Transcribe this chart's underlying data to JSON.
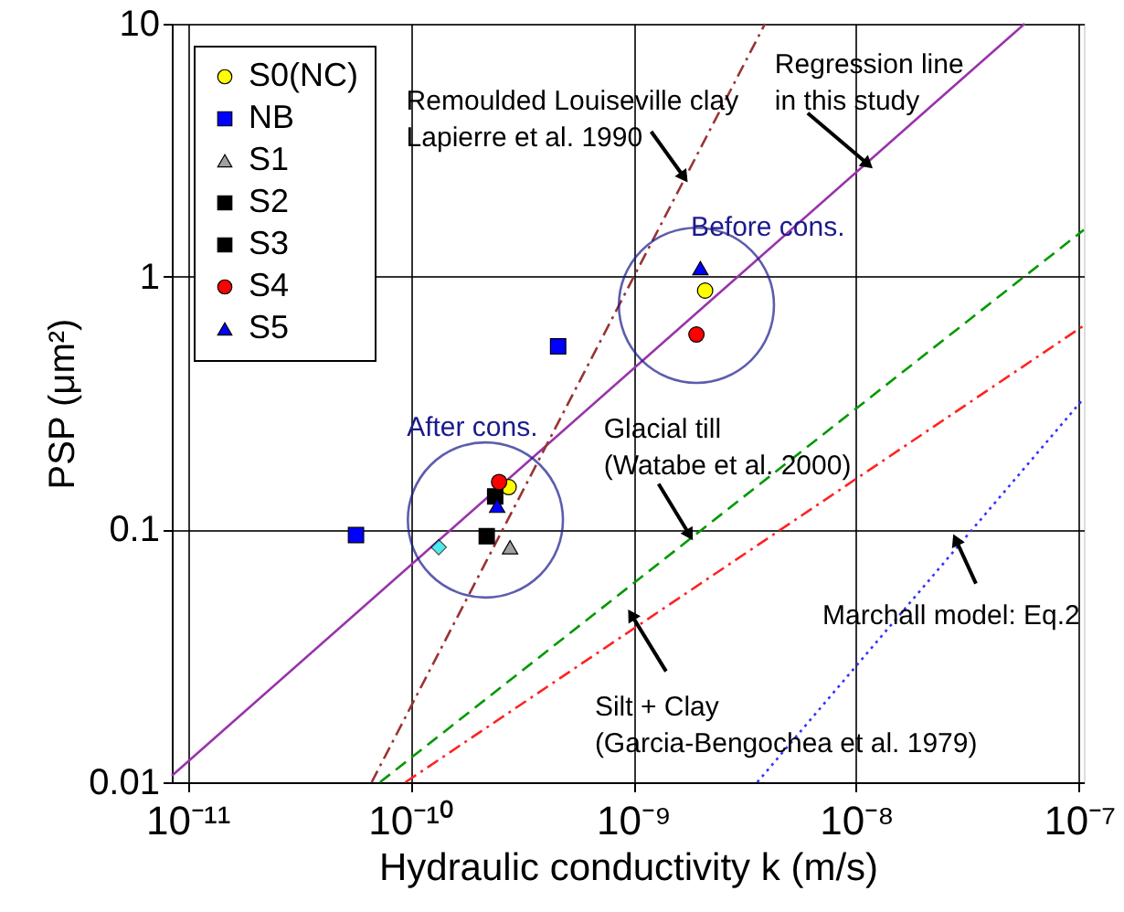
{
  "chart_data": {
    "type": "scatter",
    "xlabel": "Hydraulic conductivity  k (m/s)",
    "ylabel": "PSP (μm²)",
    "log": "xy",
    "grid": true,
    "legend": "top left",
    "xlim": [
      8.5e-12,
      1.05e-07
    ],
    "ylim": [
      0.01,
      10
    ],
    "xticks": [
      {
        "value": 1e-11,
        "label": "10⁻¹¹"
      },
      {
        "value": 1e-10,
        "label": "10⁻¹⁰"
      },
      {
        "value": 1e-09,
        "label": "10⁻⁹"
      },
      {
        "value": 1e-08,
        "label": "10⁻⁸"
      },
      {
        "value": 1e-07,
        "label": "10⁻⁷"
      }
    ],
    "yticks": [
      0.01,
      0.1,
      1,
      10
    ],
    "series": [
      {
        "name": "S0(NC)",
        "color": "#ffff00",
        "marker": "circle",
        "x": [
          2.76e-10,
          2.1e-09
        ],
        "values": [
          0.147,
          0.88
        ]
      },
      {
        "name": "NB",
        "color": "#0000ff",
        "marker": "square",
        "x": [
          5.7e-11,
          4.6e-10
        ],
        "values": [
          0.095,
          0.53
        ]
      },
      {
        "name": "S1",
        "color": "#a0a0a0",
        "marker": "triangle",
        "x": [
          2.8e-10
        ],
        "values": [
          0.085
        ]
      },
      {
        "name": "S2",
        "color": "#000000",
        "marker": "square",
        "x": [
          2.2e-10
        ],
        "values": [
          0.094
        ]
      },
      {
        "name": "S3",
        "color": "#000000",
        "marker": "square",
        "x": [
          2.4e-10
        ],
        "values": [
          0.135
        ]
      },
      {
        "name": "S4",
        "color": "#ff0000",
        "marker": "circle",
        "x": [
          2.5e-10,
          1.92e-09
        ],
        "values": [
          0.154,
          0.59
        ]
      },
      {
        "name": "S5",
        "color": "#0000ff",
        "marker": "triangle",
        "x": [
          2.45e-10,
          2e-09
        ],
        "values": [
          0.124,
          1.08
        ]
      },
      {
        "color": "#00e5e5",
        "marker": "diamond",
        "x": [
          1.34e-10
        ],
        "values": [
          0.085
        ]
      },
      {
        "type": "line",
        "color": "#9933aa",
        "line_style": "solid",
        "x": [
          8.5e-12,
          5.7e-08
        ],
        "values": [
          0.0106,
          10
        ]
      },
      {
        "type": "line",
        "color": "#993333",
        "line_style": "dashdot",
        "x": [
          6.7e-11,
          3.9e-09
        ],
        "values": [
          0.01,
          10
        ]
      },
      {
        "type": "line",
        "color": "#009900",
        "line_style": "dashed",
        "x": [
          7.3e-11,
          1.05e-07
        ],
        "values": [
          0.01,
          1.53
        ]
      },
      {
        "type": "line",
        "color": "#ff2222",
        "line_style": "dashdot",
        "x": [
          9.5e-11,
          1.05e-07
        ],
        "values": [
          0.01,
          0.64
        ]
      },
      {
        "type": "line",
        "color": "#3333ff",
        "line_style": "dotted",
        "x": [
          3.6e-09,
          1.05e-07
        ],
        "values": [
          0.01,
          0.33
        ]
      }
    ],
    "annotations": [
      {
        "text": "Remoulded Louiseville clay\nLapierre et al. 1990",
        "x": 1.69e-09,
        "y": 2.47
      },
      {
        "text": "Regression line\nin this study",
        "x": 1.13e-08,
        "y": 2.78
      },
      {
        "text": "Glacial till\n(Watabe et al. 2000)",
        "x": 1.79e-09,
        "y": 0.095
      },
      {
        "text": "Silt + Clay\n(Garcia-Bengochea et al. 1979)",
        "x": 9.8e-10,
        "y": 0.046
      },
      {
        "text": "Marchall model: Eq.2",
        "x": 2.8e-08,
        "y": 0.091
      },
      {
        "text": "After cons.",
        "x": 2.17e-10,
        "y": 0.109
      },
      {
        "text": "Before cons.",
        "x": 1.92e-09,
        "y": 0.77
      }
    ]
  }
}
